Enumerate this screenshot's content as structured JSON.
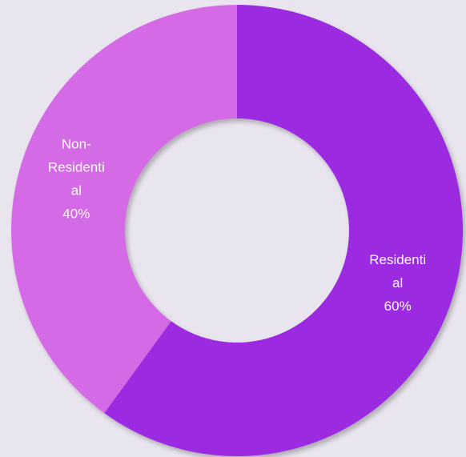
{
  "chart_data": {
    "type": "pie",
    "donut": true,
    "title": "",
    "categories": [
      "Residential",
      "Non-Residential"
    ],
    "values": [
      60,
      40
    ],
    "series": [
      {
        "name": "",
        "values": [
          60,
          40
        ]
      }
    ],
    "labels": [
      {
        "category": "Residential",
        "lines": [
          "Residenti",
          "al",
          "60%"
        ],
        "color": "#9b2be0"
      },
      {
        "category": "Non-Residential",
        "lines": [
          "Non-",
          "Residenti",
          "al",
          "40%"
        ],
        "color": "#d46ae6"
      }
    ],
    "colors": [
      "#9b2be0",
      "#d46ae6"
    ],
    "legend": "none"
  }
}
